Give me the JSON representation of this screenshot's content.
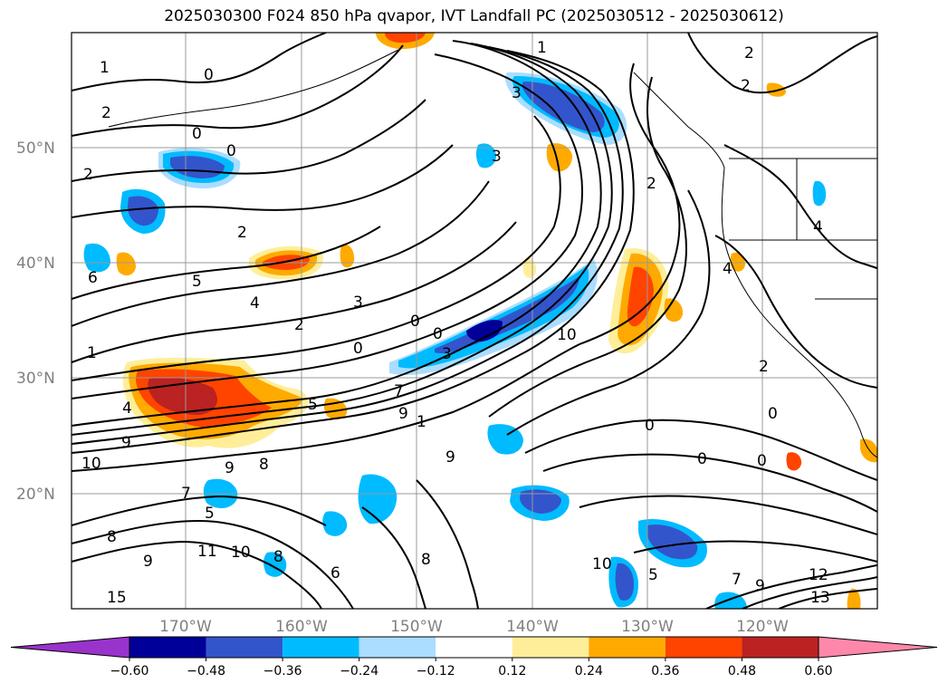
{
  "title": "2025030300 F024 850 hPa qvapor, IVT Landfall PC (2025030512 - 2025030612)",
  "lon_ticks": [
    "170°W",
    "160°W",
    "150°W",
    "140°W",
    "130°W",
    "120°W"
  ],
  "lat_ticks": [
    "50°N",
    "40°N",
    "30°N",
    "20°N"
  ],
  "colorbar": {
    "colors": [
      "#9933cc",
      "#000099",
      "#3355cc",
      "#00bbff",
      "#aaddff",
      "#ffffff",
      "#ffee99",
      "#ffaa00",
      "#ff4400",
      "#bb2222",
      "#ff88aa"
    ],
    "tick_labels": [
      "−0.60",
      "−0.48",
      "−0.36",
      "−0.24",
      "−0.12",
      "0.12",
      "0.24",
      "0.36",
      "0.48",
      "0.60"
    ]
  },
  "contour_labels": [
    "1",
    "0",
    "0",
    "2",
    "0",
    "2",
    "3",
    "1",
    "3",
    "2",
    "4",
    "6",
    "5",
    "4",
    "3",
    "2",
    "0",
    "0",
    "0",
    "1",
    "7",
    "9",
    "9",
    "9",
    "10",
    "8",
    "4",
    "4",
    "2",
    "0",
    "0",
    "0",
    "7",
    "9",
    "5",
    "8",
    "10",
    "11",
    "8",
    "6",
    "9",
    "8",
    "10",
    "5",
    "2",
    "7",
    "9",
    "13",
    "12",
    "15",
    "2",
    "2",
    "1",
    "3",
    "0",
    "5",
    "10"
  ]
}
